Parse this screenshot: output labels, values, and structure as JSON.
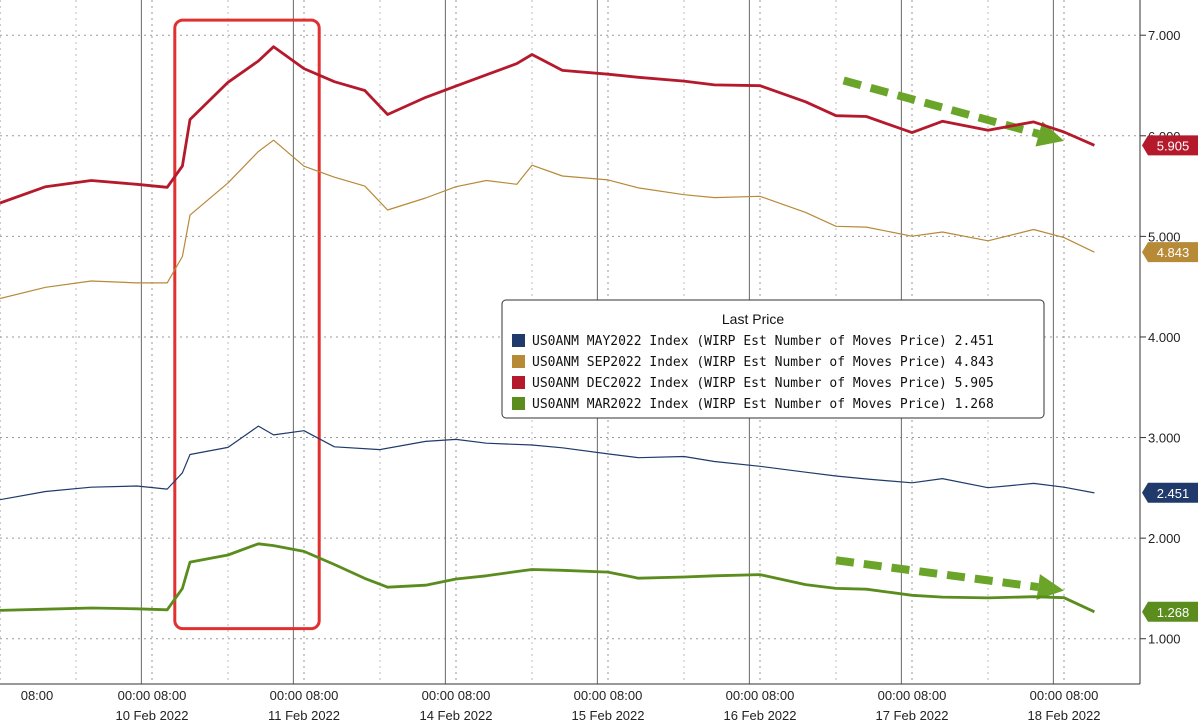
{
  "chart_data": {
    "type": "line",
    "y_axis": {
      "ticks": [
        "1.000",
        "2.000",
        "3.000",
        "4.000",
        "5.000",
        "6.000",
        "7.000"
      ],
      "tick_values": [
        1,
        2,
        3,
        4,
        5,
        6,
        7
      ],
      "ylim": [
        0.55,
        7.35
      ],
      "position": "right"
    },
    "x_axis": {
      "time_labels": [
        {
          "text": "08:00",
          "day": 0
        },
        {
          "text": "00:00 08:00",
          "day": 1
        },
        {
          "text": "00:00 08:00",
          "day": 2
        },
        {
          "text": "00:00 08:00",
          "day": 3
        },
        {
          "text": "00:00 08:00",
          "day": 4
        },
        {
          "text": "00:00 08:00",
          "day": 5
        },
        {
          "text": "00:00 08:00",
          "day": 6
        },
        {
          "text": "00:00 08:00",
          "day": 7
        }
      ],
      "date_labels": [
        {
          "text": "10 Feb 2022",
          "day": 1
        },
        {
          "text": "11 Feb 2022",
          "day": 2
        },
        {
          "text": "14 Feb 2022",
          "day": 3
        },
        {
          "text": "15 Feb 2022",
          "day": 4
        },
        {
          "text": "16 Feb 2022",
          "day": 5
        },
        {
          "text": "17 Feb 2022",
          "day": 6
        },
        {
          "text": "18 Feb 2022",
          "day": 7
        }
      ],
      "xlim": [
        0.0,
        7.5
      ]
    },
    "grid": true,
    "series": [
      {
        "key": "may",
        "color": "#1f3a6b",
        "stroke_width": 1.2,
        "last_value": "2.451",
        "x": [
          0.0,
          0.3,
          0.6,
          0.9,
          1.1,
          1.2,
          1.25,
          1.5,
          1.7,
          1.8,
          2.0,
          2.2,
          2.5,
          2.8,
          3.0,
          3.2,
          3.5,
          3.7,
          4.0,
          4.2,
          4.5,
          4.7,
          5.0,
          5.3,
          5.5,
          5.7,
          6.0,
          6.2,
          6.5,
          6.8,
          7.0,
          7.2
        ],
        "y": [
          2.4,
          2.47,
          2.5,
          2.5,
          2.5,
          2.65,
          2.82,
          2.92,
          3.12,
          3.02,
          3.05,
          2.92,
          2.88,
          2.95,
          3.0,
          2.95,
          2.92,
          2.88,
          2.85,
          2.8,
          2.8,
          2.78,
          2.72,
          2.65,
          2.6,
          2.6,
          2.55,
          2.58,
          2.52,
          2.55,
          2.5,
          2.45
        ]
      },
      {
        "key": "sep",
        "color": "#b78a38",
        "stroke_width": 1.2,
        "last_value": "4.843",
        "x": [
          0.0,
          0.3,
          0.6,
          0.9,
          1.1,
          1.2,
          1.25,
          1.5,
          1.7,
          1.8,
          2.0,
          2.2,
          2.4,
          2.55,
          2.8,
          3.0,
          3.2,
          3.4,
          3.5,
          3.7,
          4.0,
          4.2,
          4.5,
          4.7,
          5.0,
          5.3,
          5.5,
          5.7,
          6.0,
          6.2,
          6.5,
          6.8,
          7.0,
          7.2
        ],
        "y": [
          4.4,
          4.5,
          4.55,
          4.52,
          4.55,
          4.8,
          5.2,
          5.55,
          5.85,
          5.95,
          5.68,
          5.6,
          5.5,
          5.25,
          5.4,
          5.5,
          5.55,
          5.5,
          5.72,
          5.6,
          5.55,
          5.5,
          5.42,
          5.38,
          5.38,
          5.25,
          5.1,
          5.08,
          5.02,
          5.05,
          4.95,
          5.05,
          5.0,
          4.843
        ]
      },
      {
        "key": "dec",
        "color": "#b5192c",
        "stroke_width": 2.8,
        "last_value": "5.905",
        "x": [
          0.0,
          0.3,
          0.6,
          0.9,
          1.1,
          1.2,
          1.25,
          1.5,
          1.7,
          1.8,
          2.0,
          2.2,
          2.4,
          2.55,
          2.8,
          3.0,
          3.2,
          3.4,
          3.5,
          3.7,
          4.0,
          4.2,
          4.5,
          4.7,
          5.0,
          5.3,
          5.5,
          5.7,
          6.0,
          6.2,
          6.5,
          6.8,
          7.0,
          7.2
        ],
        "y": [
          5.35,
          5.5,
          5.55,
          5.5,
          5.5,
          5.7,
          6.15,
          6.55,
          6.75,
          6.88,
          6.65,
          6.55,
          6.45,
          6.2,
          6.4,
          6.5,
          6.6,
          6.7,
          6.82,
          6.65,
          6.6,
          6.6,
          6.55,
          6.5,
          6.48,
          6.35,
          6.2,
          6.18,
          6.05,
          6.15,
          6.05,
          6.12,
          6.05,
          5.905
        ]
      },
      {
        "key": "mar",
        "color": "#5a8c1e",
        "stroke_width": 2.8,
        "last_value": "1.268",
        "x": [
          0.0,
          0.3,
          0.6,
          0.9,
          1.1,
          1.2,
          1.25,
          1.5,
          1.7,
          1.8,
          2.0,
          2.2,
          2.4,
          2.55,
          2.8,
          3.0,
          3.2,
          3.4,
          3.5,
          3.7,
          4.0,
          4.2,
          4.5,
          4.7,
          5.0,
          5.3,
          5.5,
          5.7,
          6.0,
          6.2,
          6.5,
          6.8,
          7.0,
          7.2
        ],
        "y": [
          1.3,
          1.3,
          1.3,
          1.28,
          1.3,
          1.5,
          1.75,
          1.85,
          1.95,
          1.92,
          1.85,
          1.75,
          1.6,
          1.5,
          1.55,
          1.6,
          1.62,
          1.65,
          1.7,
          1.68,
          1.65,
          1.62,
          1.62,
          1.62,
          1.62,
          1.55,
          1.5,
          1.48,
          1.45,
          1.42,
          1.4,
          1.4,
          1.42,
          1.268
        ]
      }
    ],
    "legend": {
      "title": "Last Price",
      "entries": [
        {
          "color": "#1f3a6b",
          "text": "US0ANM MAY2022 Index (WIRP Est Number of Moves Price) 2.451"
        },
        {
          "color": "#b78a38",
          "text": "US0ANM SEP2022 Index (WIRP Est Number of Moves Price) 4.843"
        },
        {
          "color": "#b5192c",
          "text": "US0ANM DEC2022 Index (WIRP Est Number of Moves Price) 5.905"
        },
        {
          "color": "#5a8c1e",
          "text": "US0ANM MAR2022 Index (WIRP Est Number of Moves Price) 1.268"
        }
      ]
    },
    "annotations": {
      "highlight_box": {
        "x0": 1.15,
        "x1": 2.1,
        "y0": 1.1,
        "y1": 7.15,
        "color": "#e03030"
      },
      "arrows": [
        {
          "x0": 5.55,
          "y0": 6.55,
          "x1": 7.0,
          "y1": 5.95,
          "color": "#6aa52a"
        },
        {
          "x0": 5.5,
          "y0": 1.78,
          "x1": 7.0,
          "y1": 1.48,
          "color": "#6aa52a"
        }
      ]
    }
  }
}
